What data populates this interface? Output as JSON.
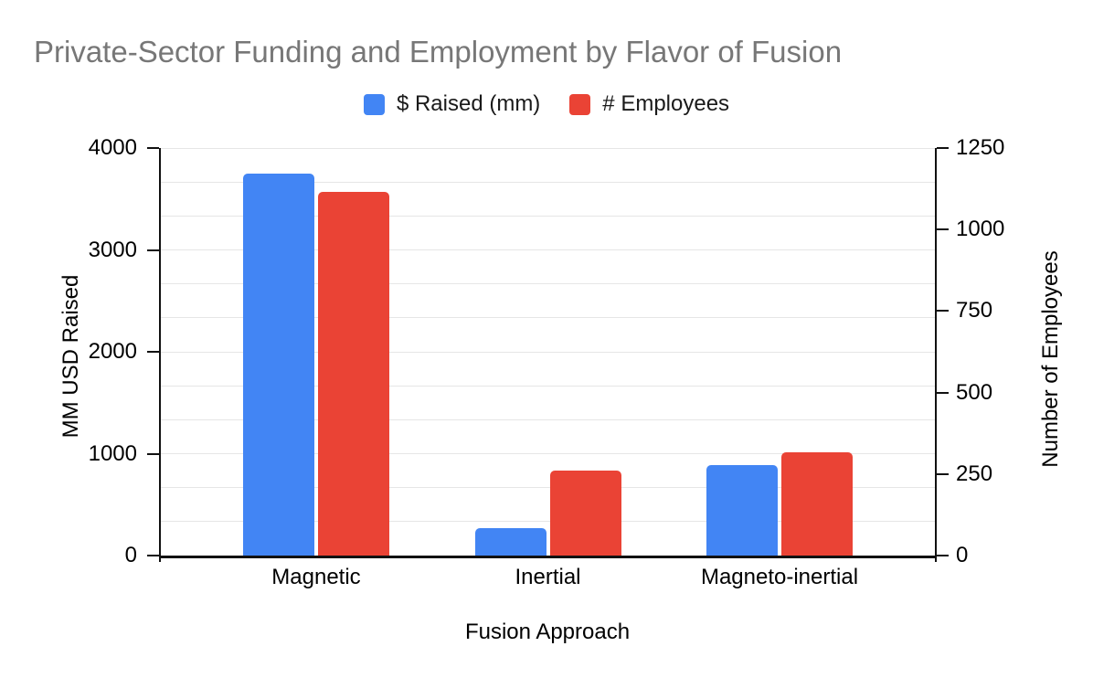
{
  "title": "Private-Sector Funding and Employment by Flavor of Fusion",
  "chart_data": {
    "type": "bar",
    "title": "Private-Sector Funding and Employment by Flavor of Fusion",
    "categories": [
      "Magnetic",
      "Inertial",
      "Magneto-inertial"
    ],
    "series": [
      {
        "name": "$ Raised (mm)",
        "axis": "left",
        "color": "#4285F4",
        "values": [
          3750,
          265,
          890
        ]
      },
      {
        "name": "# Employees",
        "axis": "right",
        "color": "#EA4335",
        "values": [
          1115,
          260,
          317
        ]
      }
    ],
    "xlabel": "Fusion Approach",
    "left_axis": {
      "label": "MM USD Raised",
      "min": 0,
      "max": 4000,
      "ticks": [
        0,
        1000,
        2000,
        3000,
        4000
      ]
    },
    "right_axis": {
      "label": "Number of Employees",
      "min": 0,
      "max": 1250,
      "ticks": [
        0,
        250,
        500,
        750,
        1000,
        1250
      ]
    },
    "grid": {
      "show": true,
      "minor_intervals_per_major": 3,
      "color": "#e6e6e6"
    },
    "legend_position": "top",
    "title_color": "#777777",
    "axis_color": "#111111",
    "background_color": "#ffffff"
  }
}
